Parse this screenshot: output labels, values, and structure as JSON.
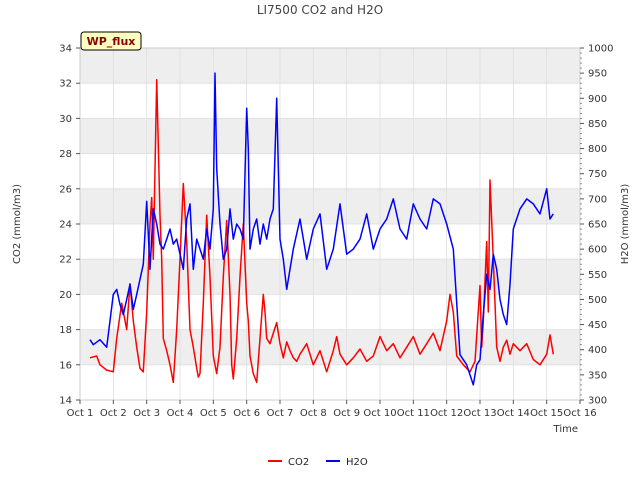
{
  "chart_data": {
    "type": "line",
    "title": "LI7500 CO2 and H2O",
    "xlabel": "Time",
    "ylabel": "CO2 (mmol/m3)",
    "y2label": "H2O (mmol/m3)",
    "badge": "WP_flux",
    "ylim": [
      14,
      34
    ],
    "y2lim": [
      300,
      1000
    ],
    "yticks": [
      14,
      16,
      18,
      20,
      22,
      24,
      26,
      28,
      30,
      32,
      34
    ],
    "y2ticks": [
      300,
      350,
      400,
      450,
      500,
      550,
      600,
      650,
      700,
      750,
      800,
      850,
      900,
      950,
      1000
    ],
    "xlim": [
      1,
      16
    ],
    "xticks": [
      1,
      2,
      3,
      4,
      5,
      6,
      7,
      8,
      9,
      10,
      11,
      12,
      13,
      14,
      15,
      16
    ],
    "xticklabels": [
      "Oct 1",
      "Oct 2",
      "Oct 3",
      "Oct 4",
      "Oct 5",
      "Oct 6",
      "Oct 7",
      "Oct 8",
      "Oct 9",
      "Oct 10",
      "Oct 11",
      "Oct 12",
      "Oct 13",
      "Oct 14",
      "Oct 15",
      "Oct 16"
    ],
    "grid": true,
    "legend_position": "bottom-center",
    "series": [
      {
        "name": "CO2",
        "axis": "left",
        "color": "#ff0000",
        "x": [
          1.3,
          1.5,
          1.6,
          1.8,
          2.0,
          2.1,
          2.25,
          2.4,
          2.5,
          2.6,
          2.7,
          2.8,
          2.9,
          3.0,
          3.1,
          3.15,
          3.2,
          3.3,
          3.4,
          3.45,
          3.5,
          3.6,
          3.7,
          3.8,
          3.9,
          4.0,
          4.1,
          4.2,
          4.3,
          4.4,
          4.5,
          4.55,
          4.6,
          4.7,
          4.8,
          4.9,
          5.0,
          5.1,
          5.2,
          5.3,
          5.4,
          5.5,
          5.55,
          5.6,
          5.7,
          5.8,
          5.9,
          6.0,
          6.05,
          6.1,
          6.2,
          6.3,
          6.4,
          6.5,
          6.55,
          6.6,
          6.7,
          6.8,
          6.9,
          7.0,
          7.1,
          7.2,
          7.3,
          7.4,
          7.5,
          7.6,
          7.8,
          8.0,
          8.2,
          8.4,
          8.6,
          8.7,
          8.8,
          9.0,
          9.2,
          9.4,
          9.6,
          9.8,
          10.0,
          10.2,
          10.4,
          10.6,
          10.8,
          11.0,
          11.2,
          11.4,
          11.6,
          11.8,
          12.0,
          12.1,
          12.2,
          12.3,
          12.5,
          12.7,
          12.85,
          13.0,
          13.05,
          13.1,
          13.2,
          13.25,
          13.3,
          13.4,
          13.5,
          13.6,
          13.7,
          13.8,
          13.9,
          14.0,
          14.2,
          14.4,
          14.6,
          14.8,
          15.0,
          15.1,
          15.2
        ],
        "y": [
          16.4,
          16.5,
          16.0,
          15.7,
          15.6,
          17.5,
          19.5,
          18.0,
          20.6,
          18.5,
          17.0,
          15.8,
          15.6,
          19.0,
          24.0,
          25.5,
          22.0,
          32.2,
          24.5,
          22.0,
          17.5,
          16.8,
          16.0,
          15.0,
          18.0,
          22.0,
          26.3,
          23.0,
          18.0,
          17.0,
          15.8,
          15.3,
          15.5,
          19.5,
          24.5,
          21.0,
          16.5,
          15.5,
          17.0,
          21.0,
          24.2,
          20.0,
          16.0,
          15.2,
          17.5,
          21.0,
          24.0,
          19.5,
          18.5,
          16.5,
          15.5,
          15.0,
          17.5,
          20.0,
          19.0,
          17.5,
          17.2,
          17.8,
          18.4,
          17.2,
          16.4,
          17.3,
          16.8,
          16.4,
          16.2,
          16.6,
          17.2,
          16.0,
          16.8,
          15.6,
          16.8,
          17.6,
          16.6,
          16.0,
          16.4,
          16.9,
          16.2,
          16.5,
          17.6,
          16.8,
          17.2,
          16.4,
          17.0,
          17.6,
          16.6,
          17.2,
          17.8,
          16.8,
          18.5,
          20.0,
          19.0,
          16.5,
          16.0,
          15.6,
          16.2,
          20.5,
          17.0,
          18.5,
          23.0,
          19.0,
          26.5,
          22.0,
          17.0,
          16.2,
          17.0,
          17.4,
          16.6,
          17.2,
          16.8,
          17.2,
          16.3,
          16.0,
          16.6,
          17.7,
          16.6
        ]
      },
      {
        "name": "H2O",
        "axis": "right",
        "color": "#0000ff",
        "x": [
          1.3,
          1.4,
          1.6,
          1.8,
          2.0,
          2.1,
          2.2,
          2.3,
          2.4,
          2.5,
          2.6,
          2.7,
          2.8,
          2.9,
          3.0,
          3.1,
          3.2,
          3.3,
          3.4,
          3.5,
          3.6,
          3.7,
          3.8,
          3.9,
          4.0,
          4.1,
          4.2,
          4.3,
          4.4,
          4.5,
          4.6,
          4.7,
          4.8,
          4.9,
          5.0,
          5.05,
          5.1,
          5.2,
          5.3,
          5.4,
          5.5,
          5.6,
          5.7,
          5.8,
          5.9,
          6.0,
          6.05,
          6.1,
          6.2,
          6.3,
          6.4,
          6.5,
          6.6,
          6.7,
          6.8,
          6.9,
          7.0,
          7.1,
          7.2,
          7.3,
          7.4,
          7.6,
          7.8,
          8.0,
          8.2,
          8.4,
          8.6,
          8.8,
          9.0,
          9.2,
          9.4,
          9.6,
          9.8,
          10.0,
          10.2,
          10.4,
          10.6,
          10.8,
          11.0,
          11.2,
          11.4,
          11.6,
          11.8,
          12.0,
          12.2,
          12.4,
          12.6,
          12.8,
          12.9,
          13.0,
          13.1,
          13.2,
          13.3,
          13.4,
          13.5,
          13.6,
          13.7,
          13.8,
          13.9,
          14.0,
          14.2,
          14.4,
          14.6,
          14.8,
          15.0,
          15.1,
          15.2
        ],
        "y": [
          420,
          410,
          420,
          405,
          510,
          520,
          490,
          470,
          500,
          530,
          480,
          510,
          540,
          570,
          695,
          560,
          680,
          650,
          610,
          600,
          620,
          640,
          610,
          620,
          590,
          560,
          660,
          690,
          560,
          620,
          600,
          580,
          640,
          600,
          680,
          950,
          760,
          650,
          580,
          600,
          680,
          620,
          650,
          640,
          620,
          880,
          800,
          600,
          640,
          660,
          610,
          650,
          620,
          660,
          680,
          900,
          620,
          580,
          520,
          560,
          600,
          660,
          580,
          640,
          670,
          560,
          600,
          690,
          590,
          600,
          620,
          670,
          600,
          640,
          660,
          700,
          640,
          620,
          690,
          660,
          640,
          700,
          690,
          650,
          600,
          390,
          370,
          330,
          370,
          380,
          470,
          550,
          520,
          590,
          560,
          500,
          470,
          450,
          530,
          640,
          680,
          700,
          690,
          670,
          720,
          660,
          670
        ]
      }
    ]
  }
}
